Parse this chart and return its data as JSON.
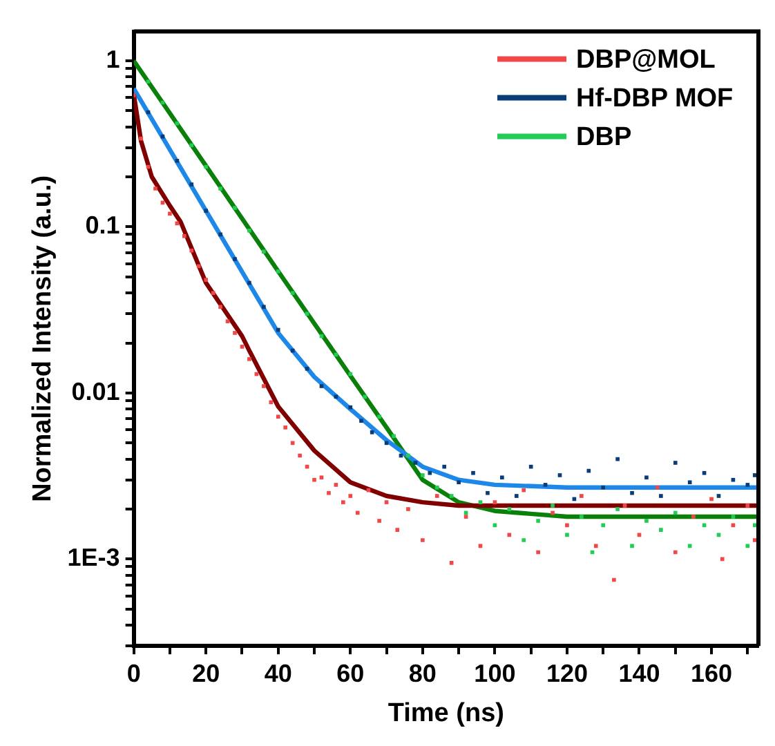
{
  "chart_data": {
    "type": "scatter",
    "xlabel": "Time (ns)",
    "ylabel": "Normalized Intensity (a.u.)",
    "log": "y",
    "grid": false,
    "legend": "top right",
    "marker": "square",
    "xlim": [
      0,
      173
    ],
    "ylim": [
      0.0003,
      1.5
    ],
    "xticks": [
      0,
      {
        "value": 10,
        "label": null
      },
      20,
      {
        "value": 30,
        "label": null
      },
      40,
      {
        "value": 50,
        "label": null
      },
      60,
      {
        "value": 70,
        "label": null
      },
      80,
      {
        "value": 90,
        "label": null
      },
      100,
      {
        "value": 110,
        "label": null
      },
      120,
      {
        "value": 130,
        "label": null
      },
      140,
      {
        "value": 150,
        "label": null
      },
      160,
      {
        "value": 170,
        "label": null
      }
    ],
    "yticks": [
      {
        "value": 0.0003,
        "label": null
      },
      {
        "value": 0.0004,
        "label": null
      },
      {
        "value": 0.0005,
        "label": null
      },
      {
        "value": 0.0006,
        "label": null
      },
      {
        "value": 0.0007,
        "label": null
      },
      {
        "value": 0.0008,
        "label": null
      },
      {
        "value": 0.0009,
        "label": null
      },
      {
        "value": 0.001,
        "label": "1E-3"
      },
      {
        "value": 0.002,
        "label": null
      },
      {
        "value": 0.003,
        "label": null
      },
      {
        "value": 0.004,
        "label": null
      },
      {
        "value": 0.005,
        "label": null
      },
      {
        "value": 0.006,
        "label": null
      },
      {
        "value": 0.007,
        "label": null
      },
      {
        "value": 0.008,
        "label": null
      },
      {
        "value": 0.009,
        "label": null
      },
      0.01,
      {
        "value": 0.02,
        "label": null
      },
      {
        "value": 0.03,
        "label": null
      },
      {
        "value": 0.04,
        "label": null
      },
      {
        "value": 0.05,
        "label": null
      },
      {
        "value": 0.06,
        "label": null
      },
      {
        "value": 0.07,
        "label": null
      },
      {
        "value": 0.08,
        "label": null
      },
      {
        "value": 0.09,
        "label": null
      },
      0.1,
      {
        "value": 0.2,
        "label": null
      },
      {
        "value": 0.3,
        "label": null
      },
      {
        "value": 0.4,
        "label": null
      },
      {
        "value": 0.5,
        "label": null
      },
      {
        "value": 0.6,
        "label": null
      },
      {
        "value": 0.7,
        "label": null
      },
      {
        "value": 0.8,
        "label": null
      },
      {
        "value": 0.9,
        "label": null
      },
      1
    ],
    "series": [
      {
        "name": "DBP@MOL",
        "color": "#f04848",
        "x": [
          0,
          2,
          4,
          6,
          8,
          10,
          12,
          14,
          16,
          18,
          20,
          22,
          24,
          26,
          28,
          30,
          32,
          34,
          36,
          38,
          40,
          42,
          44,
          46,
          48,
          50,
          52,
          54,
          56,
          58,
          60,
          62,
          65,
          68,
          70,
          73,
          76,
          80,
          84,
          88,
          92,
          96,
          100,
          104,
          108,
          112,
          116,
          120,
          124,
          128,
          133,
          136,
          140,
          145,
          150,
          155,
          160,
          163,
          166,
          170,
          172
        ],
        "values": [
          0.62,
          0.34,
          0.23,
          0.17,
          0.14,
          0.12,
          0.105,
          0.088,
          0.072,
          0.058,
          0.048,
          0.04,
          0.033,
          0.027,
          0.023,
          0.019,
          0.016,
          0.013,
          0.011,
          0.0088,
          0.0072,
          0.0062,
          0.005,
          0.0042,
          0.0036,
          0.003,
          0.0031,
          0.0025,
          0.0028,
          0.0022,
          0.0024,
          0.0019,
          0.0026,
          0.0017,
          0.0022,
          0.0015,
          0.002,
          0.0013,
          0.0024,
          0.00095,
          0.0018,
          0.0012,
          0.0022,
          0.0014,
          0.0026,
          0.0011,
          0.0019,
          0.0016,
          0.0024,
          0.0012,
          0.00075,
          0.0021,
          0.0014,
          0.0027,
          0.0011,
          0.0018,
          0.0023,
          0.001,
          0.0016,
          0.0021,
          0.0013
        ]
      },
      {
        "name": "Hf-DBP MOF",
        "color": "#0a3c78",
        "x": [
          4,
          8,
          12,
          16,
          20,
          24,
          28,
          32,
          36,
          40,
          44,
          48,
          52,
          56,
          60,
          63,
          66,
          70,
          74,
          78,
          82,
          86,
          90,
          94,
          98,
          102,
          106,
          110,
          114,
          118,
          122,
          126,
          130,
          134,
          138,
          142,
          146,
          150,
          154,
          158,
          162,
          166,
          170,
          172
        ],
        "values": [
          0.49,
          0.35,
          0.25,
          0.18,
          0.125,
          0.09,
          0.064,
          0.046,
          0.033,
          0.024,
          0.018,
          0.014,
          0.011,
          0.0095,
          0.0082,
          0.0068,
          0.0058,
          0.005,
          0.0042,
          0.0038,
          0.0033,
          0.0036,
          0.0029,
          0.0033,
          0.0025,
          0.0031,
          0.0024,
          0.0036,
          0.0028,
          0.0032,
          0.0023,
          0.0034,
          0.0027,
          0.004,
          0.0025,
          0.0031,
          0.0024,
          0.0038,
          0.0029,
          0.0033,
          0.0024,
          0.003,
          0.0028,
          0.0032
        ]
      },
      {
        "name": "DBP",
        "color": "#22cc55",
        "x": [
          4,
          8,
          12,
          16,
          20,
          24,
          28,
          32,
          36,
          40,
          44,
          48,
          52,
          56,
          60,
          64,
          68,
          72,
          76,
          80,
          84,
          88,
          92,
          96,
          100,
          104,
          108,
          112,
          116,
          120,
          124,
          127,
          130,
          134,
          138,
          142,
          146,
          150,
          154,
          158,
          162,
          166,
          170,
          172
        ],
        "values": [
          0.75,
          0.56,
          0.42,
          0.31,
          0.23,
          0.17,
          0.13,
          0.095,
          0.071,
          0.054,
          0.04,
          0.03,
          0.022,
          0.017,
          0.013,
          0.0095,
          0.0072,
          0.0055,
          0.0042,
          0.0032,
          0.0027,
          0.0024,
          0.0019,
          0.0022,
          0.0016,
          0.002,
          0.0013,
          0.0017,
          0.0021,
          0.0014,
          0.0018,
          0.0011,
          0.0016,
          0.002,
          0.0012,
          0.0017,
          0.0015,
          0.0019,
          0.0012,
          0.0016,
          0.0014,
          0.0018,
          0.0012,
          0.0016
        ]
      },
      {
        "type": "line",
        "marker": "none",
        "color": "#800000",
        "x": [
          0,
          2,
          5,
          10,
          13,
          20,
          30,
          32,
          40,
          50,
          60,
          70,
          80,
          90,
          173
        ],
        "values": [
          0.63,
          0.33,
          0.2,
          0.134,
          0.107,
          0.046,
          0.022,
          0.018,
          0.0083,
          0.0045,
          0.0029,
          0.0024,
          0.0022,
          0.0021,
          0.0021
        ]
      },
      {
        "type": "line",
        "marker": "none",
        "color": "#1e88e8",
        "x": [
          0,
          20,
          40,
          50,
          60,
          70,
          80,
          90,
          100,
          120,
          173
        ],
        "values": [
          0.68,
          0.125,
          0.023,
          0.0125,
          0.008,
          0.0052,
          0.0036,
          0.003,
          0.0028,
          0.0027,
          0.0027
        ]
      },
      {
        "type": "line",
        "marker": "none",
        "color": "#0a800a",
        "x": [
          0,
          20,
          40,
          60,
          70,
          80,
          90,
          100,
          120,
          173
        ],
        "values": [
          1,
          0.233,
          0.054,
          0.0127,
          0.0062,
          0.003,
          0.0022,
          0.00195,
          0.0018,
          0.0018
        ]
      }
    ]
  }
}
